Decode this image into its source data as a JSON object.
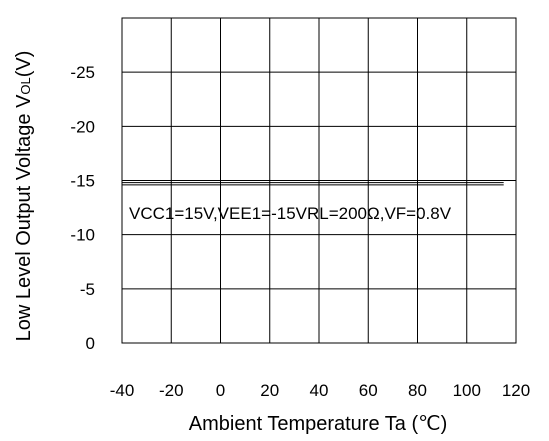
{
  "chart_data": {
    "type": "line",
    "title": "",
    "xlabel": "Ambient Temperature Ta (℃)",
    "ylabel_main": "Low Level Output Voltage V",
    "ylabel_sub": "OL",
    "ylabel_unit": "(V)",
    "xlim": [
      -40,
      120
    ],
    "ylim": [
      0,
      -30
    ],
    "x_ticks": [
      -40,
      -20,
      0,
      20,
      40,
      60,
      80,
      100,
      120
    ],
    "x_tick_labels": [
      "-40",
      "-20",
      "0",
      "20",
      "40",
      "60",
      "80",
      "100",
      "120"
    ],
    "y_ticks": [
      0,
      -5,
      -10,
      -15,
      -20,
      -25
    ],
    "y_tick_labels": [
      "0",
      "-5",
      "-10",
      "-15",
      "-20",
      "-25"
    ],
    "grid": true,
    "series": [
      {
        "x": [
          -40,
          115
        ],
        "y": [
          -14.6,
          -14.6
        ],
        "color": "#000000"
      },
      {
        "x": [
          -40,
          115
        ],
        "y": [
          -14.8,
          -14.8
        ],
        "color": "#000000"
      }
    ],
    "annotation": "VCC1=15V,VEE1=-15VRL=200Ω,VF=0.8V"
  }
}
